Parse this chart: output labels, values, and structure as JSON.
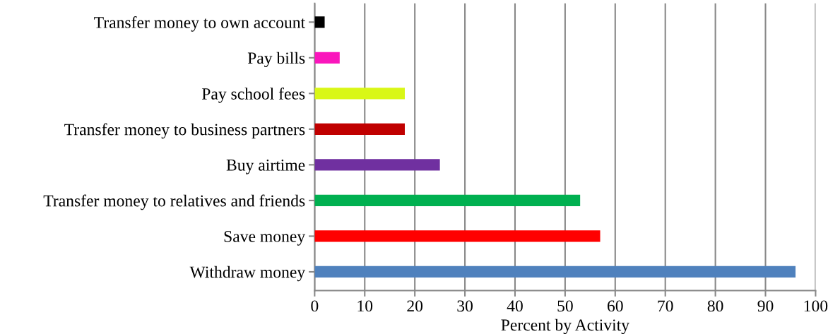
{
  "chart_data": {
    "type": "bar",
    "orientation": "horizontal",
    "xlabel": "Percent by Activity",
    "categories": [
      "Transfer money to own account",
      "Pay bills",
      "Pay school fees",
      "Transfer money to business partners",
      "Buy airtime",
      "Transfer money to relatives and friends",
      "Save money",
      "Withdraw money"
    ],
    "values": [
      2,
      5,
      18,
      18,
      25,
      53,
      57,
      96
    ],
    "colors": [
      "#000000",
      "#fa16bc",
      "#d9f716",
      "#c00000",
      "#7030a0",
      "#00b050",
      "#ff0000",
      "#4f81bd"
    ],
    "xlim": [
      0,
      100
    ],
    "xticks": [
      0,
      10,
      20,
      30,
      40,
      50,
      60,
      70,
      80,
      90,
      100
    ],
    "grid": "x",
    "legend": false
  }
}
